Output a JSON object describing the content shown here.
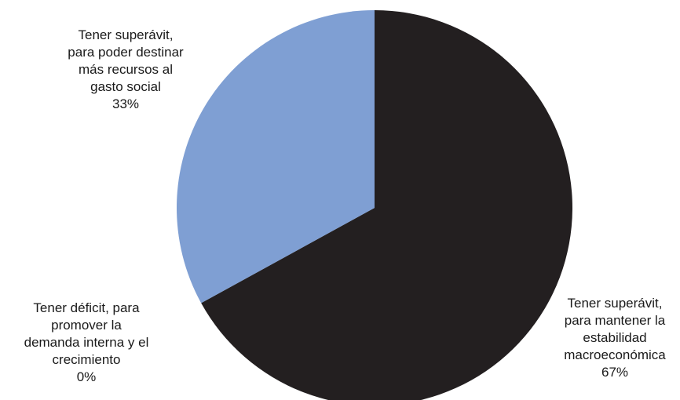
{
  "chart_data": {
    "type": "pie",
    "slices": [
      {
        "label_lines": [
          "Tener superávit,",
          "para mantener la",
          "estabilidad",
          "macroeconómica"
        ],
        "percent_label": "67%",
        "value": 67,
        "color": "#231f20"
      },
      {
        "label_lines": [
          "Tener déficit, para",
          "promover la",
          "demanda interna y el",
          "crecimiento"
        ],
        "percent_label": "0%",
        "value": 0,
        "color": "#c0504d"
      },
      {
        "label_lines": [
          "Tener superávit,",
          "para poder destinar",
          "más recursos al",
          "gasto social"
        ],
        "percent_label": "33%",
        "value": 33,
        "color": "#7f9fd3"
      }
    ],
    "start_angle_deg": 0,
    "direction": "clockwise",
    "legend": "none"
  }
}
